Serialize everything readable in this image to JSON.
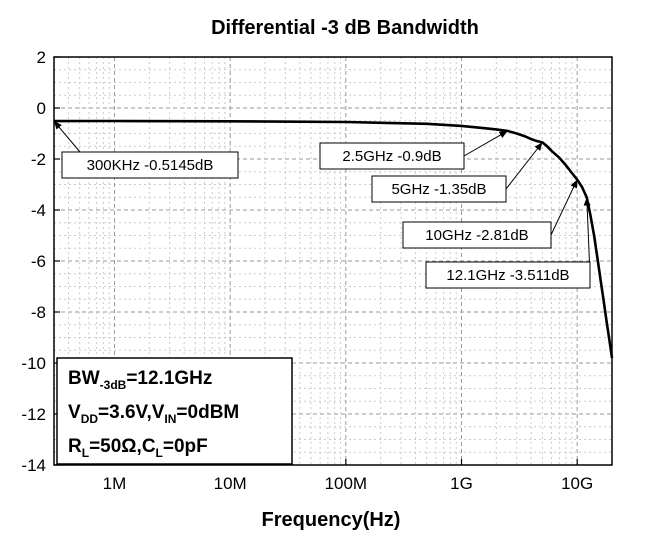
{
  "chart_data": {
    "type": "line",
    "title": "Differential -3 dB Bandwidth",
    "xlabel": "Frequency(Hz)",
    "ylabel": "",
    "xscale": "log",
    "xlim": [
      300000,
      20000000000
    ],
    "ylim": [
      -14,
      2
    ],
    "xticks": [
      {
        "value": 1000000,
        "label": "1M"
      },
      {
        "value": 10000000,
        "label": "10M"
      },
      {
        "value": 100000000,
        "label": "100M"
      },
      {
        "value": 1000000000,
        "label": "1G"
      },
      {
        "value": 10000000000,
        "label": "10G"
      }
    ],
    "yticks": [
      {
        "value": 2,
        "label": "2"
      },
      {
        "value": 0,
        "label": "0"
      },
      {
        "value": -2,
        "label": "-2"
      },
      {
        "value": -4,
        "label": "-4"
      },
      {
        "value": -6,
        "label": "-6"
      },
      {
        "value": -8,
        "label": "-8"
      },
      {
        "value": -10,
        "label": "-10"
      },
      {
        "value": -12,
        "label": "-12"
      },
      {
        "value": -14,
        "label": "-14"
      }
    ],
    "grid": true,
    "legend": "none",
    "series": [
      {
        "color": "#000000",
        "x": [
          300000,
          1000000,
          10000000,
          100000000,
          500000000,
          1000000000,
          1500000000,
          2000000000,
          2500000000,
          3000000000,
          3500000000,
          4000000000,
          4500000000,
          5000000000,
          5500000000,
          6000000000,
          7000000000,
          8000000000,
          9000000000,
          10000000000,
          11000000000,
          12100000000,
          13000000000,
          14000000000,
          15000000000,
          16000000000,
          17000000000,
          18000000000,
          19000000000,
          20000000000
        ],
        "y": [
          -0.5145,
          -0.51,
          -0.52,
          -0.55,
          -0.62,
          -0.7,
          -0.78,
          -0.84,
          -0.9,
          -1.0,
          -1.1,
          -1.22,
          -1.3,
          -1.35,
          -1.5,
          -1.68,
          -1.95,
          -2.25,
          -2.55,
          -2.81,
          -3.1,
          -3.511,
          -4.2,
          -5.0,
          -5.9,
          -6.8,
          -7.6,
          -8.4,
          -9.1,
          -9.8
        ]
      }
    ],
    "annotations": [
      {
        "text": "300KHz -0.5145dB",
        "x": 300000,
        "y": -0.5145
      },
      {
        "text": "2.5GHz -0.9dB",
        "x": 2500000000,
        "y": -0.9
      },
      {
        "text": "5GHz -1.35dB",
        "x": 5000000000,
        "y": -1.35
      },
      {
        "text": "10GHz -2.81dB",
        "x": 10000000000,
        "y": -2.81
      },
      {
        "text": "12.1GHz -3.511dB",
        "x": 12100000000,
        "y": -3.511
      }
    ],
    "info_box": {
      "bw_prefix": "BW",
      "bw_sub": "-3dB",
      "bw_value": "=12.1GHz",
      "vdd_prefix": "V",
      "vdd_sub": "DD",
      "vdd_mid": "=3.6V,V",
      "vin_sub": "IN",
      "vin_value": "=0dBM",
      "rl_prefix": "R",
      "rl_sub": "L",
      "rl_mid": "=50Ω,C",
      "cl_sub": "L",
      "cl_value": "=0pF"
    }
  }
}
